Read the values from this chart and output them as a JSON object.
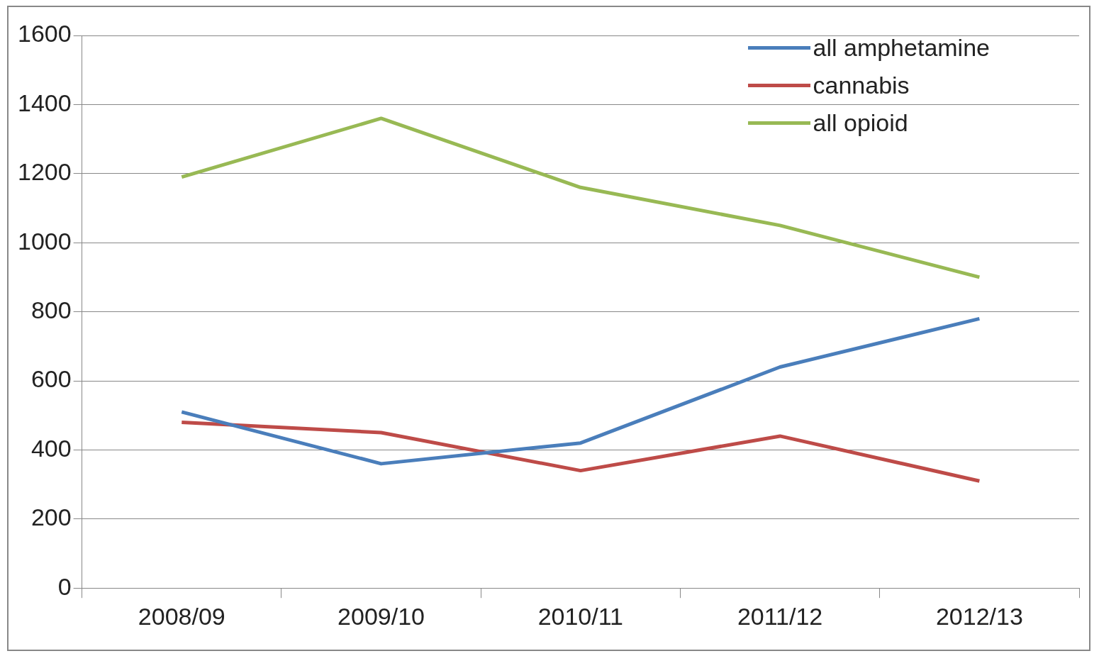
{
  "chart_data": {
    "type": "line",
    "categories": [
      "2008/09",
      "2009/10",
      "2010/11",
      "2011/12",
      "2012/13"
    ],
    "series": [
      {
        "name": "all amphetamine",
        "color": "#4a7ebb",
        "values": [
          510,
          360,
          420,
          640,
          780
        ]
      },
      {
        "name": "cannabis",
        "color": "#be4b48",
        "values": [
          480,
          450,
          340,
          440,
          310
        ]
      },
      {
        "name": "all opioid",
        "color": "#98b954",
        "values": [
          1190,
          1360,
          1160,
          1050,
          900
        ]
      }
    ],
    "ylim": [
      0,
      1600
    ],
    "yticks": [
      0,
      200,
      400,
      600,
      800,
      1000,
      1200,
      1400,
      1600
    ],
    "grid": "y",
    "legend": "top right",
    "marker": "none",
    "line_style": "solid"
  }
}
